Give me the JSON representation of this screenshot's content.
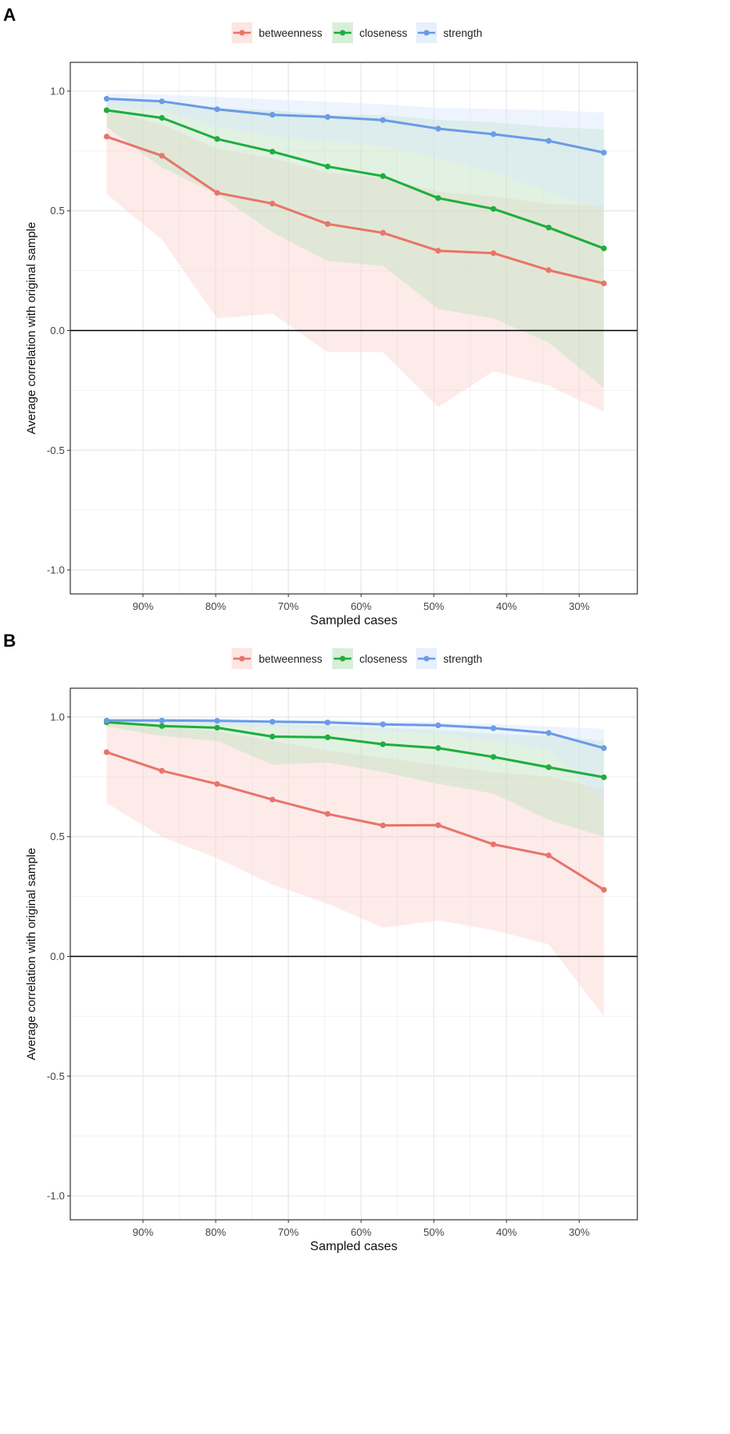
{
  "colors": {
    "betweenness": "#E8756A",
    "closeness": "#1EAE3E",
    "strength": "#6A9BE6",
    "betweenness_band": "#FBD3D0",
    "closeness_band": "#BFE3BF",
    "strength_band": "#D7E6FA"
  },
  "chart_data": [
    {
      "panel_label": "A",
      "type": "line",
      "xlabel": "Sampled cases",
      "ylabel": "Average correlation with original sample",
      "x": [
        0.95,
        0.874,
        0.798,
        0.722,
        0.646,
        0.57,
        0.494,
        0.418,
        0.342,
        0.266
      ],
      "x_ticks": [
        0.9,
        0.8,
        0.7,
        0.6,
        0.5,
        0.4,
        0.3
      ],
      "x_tick_labels": [
        "90%",
        "80%",
        "70%",
        "60%",
        "50%",
        "40%",
        "30%"
      ],
      "xlim": [
        1.0,
        0.22
      ],
      "ylim": [
        -1.1,
        1.12
      ],
      "y_ticks": [
        1.0,
        0.5,
        0.0,
        -0.5,
        -1.0
      ],
      "y_tick_labels": [
        "1.0",
        "0.5",
        "0.0",
        "-0.5",
        "-1.0"
      ],
      "legend": [
        "betweenness",
        "closeness",
        "strength"
      ],
      "legend_position": "top",
      "series": [
        {
          "name": "betweenness",
          "values": [
            0.81,
            0.73,
            0.575,
            0.53,
            0.445,
            0.408,
            0.333,
            0.323,
            0.252,
            0.197
          ],
          "lower": [
            0.57,
            0.38,
            0.05,
            0.07,
            -0.09,
            -0.09,
            -0.32,
            -0.17,
            -0.23,
            -0.34
          ],
          "upper": [
            0.92,
            0.86,
            0.76,
            0.72,
            0.66,
            0.64,
            0.58,
            0.56,
            0.53,
            0.52
          ]
        },
        {
          "name": "closeness",
          "values": [
            0.92,
            0.888,
            0.8,
            0.747,
            0.685,
            0.645,
            0.553,
            0.508,
            0.43,
            0.343
          ],
          "lower": [
            0.85,
            0.68,
            0.57,
            0.41,
            0.29,
            0.27,
            0.09,
            0.05,
            -0.05,
            -0.24
          ],
          "upper": [
            0.97,
            0.95,
            0.93,
            0.92,
            0.9,
            0.9,
            0.88,
            0.87,
            0.85,
            0.84
          ]
        },
        {
          "name": "strength",
          "values": [
            0.968,
            0.957,
            0.924,
            0.901,
            0.892,
            0.879,
            0.843,
            0.82,
            0.792,
            0.743
          ],
          "lower": [
            0.93,
            0.92,
            0.85,
            0.81,
            0.79,
            0.77,
            0.72,
            0.66,
            0.58,
            0.5
          ],
          "upper": [
            0.99,
            0.985,
            0.975,
            0.965,
            0.955,
            0.945,
            0.93,
            0.925,
            0.92,
            0.91
          ]
        }
      ]
    },
    {
      "panel_label": "B",
      "type": "line",
      "xlabel": "Sampled cases",
      "ylabel": "Average correlation with original sample",
      "x": [
        0.95,
        0.874,
        0.798,
        0.722,
        0.646,
        0.57,
        0.494,
        0.418,
        0.342,
        0.266
      ],
      "x_ticks": [
        0.9,
        0.8,
        0.7,
        0.6,
        0.5,
        0.4,
        0.3
      ],
      "x_tick_labels": [
        "90%",
        "80%",
        "70%",
        "60%",
        "50%",
        "40%",
        "30%"
      ],
      "xlim": [
        1.0,
        0.22
      ],
      "ylim": [
        -1.1,
        1.12
      ],
      "y_ticks": [
        1.0,
        0.5,
        0.0,
        -0.5,
        -1.0
      ],
      "y_tick_labels": [
        "1.0",
        "0.5",
        "0.0",
        "-0.5",
        "-1.0"
      ],
      "legend": [
        "betweenness",
        "closeness",
        "strength"
      ],
      "legend_position": "top",
      "series": [
        {
          "name": "betweenness",
          "values": [
            0.853,
            0.775,
            0.72,
            0.655,
            0.595,
            0.547,
            0.548,
            0.468,
            0.422,
            0.278
          ],
          "lower": [
            0.64,
            0.5,
            0.41,
            0.3,
            0.22,
            0.12,
            0.15,
            0.11,
            0.05,
            -0.25
          ],
          "upper": [
            0.98,
            0.96,
            0.94,
            0.9,
            0.86,
            0.83,
            0.8,
            0.77,
            0.75,
            0.7
          ]
        },
        {
          "name": "closeness",
          "values": [
            0.978,
            0.962,
            0.955,
            0.918,
            0.915,
            0.886,
            0.87,
            0.833,
            0.79,
            0.748
          ],
          "lower": [
            0.96,
            0.92,
            0.9,
            0.8,
            0.81,
            0.77,
            0.72,
            0.68,
            0.57,
            0.5
          ],
          "upper": [
            0.99,
            0.985,
            0.98,
            0.97,
            0.965,
            0.955,
            0.945,
            0.93,
            0.92,
            0.9
          ]
        },
        {
          "name": "strength",
          "values": [
            0.985,
            0.985,
            0.984,
            0.98,
            0.977,
            0.969,
            0.965,
            0.953,
            0.933,
            0.87
          ],
          "lower": [
            0.975,
            0.97,
            0.965,
            0.96,
            0.95,
            0.94,
            0.93,
            0.9,
            0.86,
            0.65
          ],
          "upper": [
            0.995,
            0.995,
            0.993,
            0.99,
            0.988,
            0.982,
            0.978,
            0.97,
            0.96,
            0.95
          ]
        }
      ]
    }
  ]
}
